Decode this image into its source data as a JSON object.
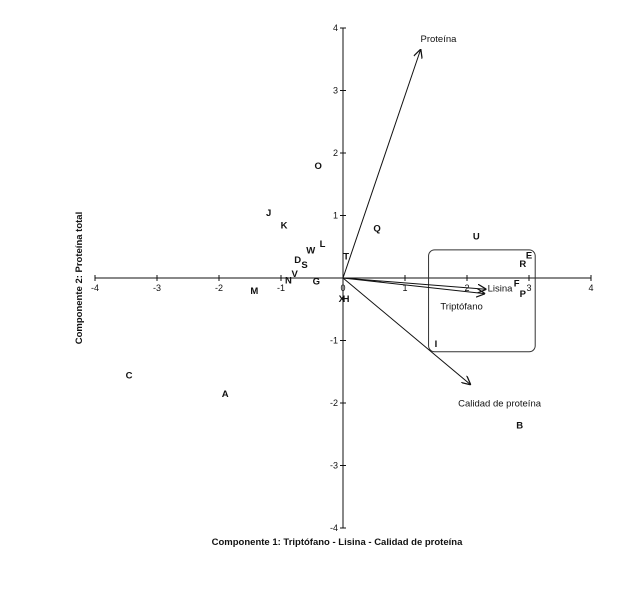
{
  "chart_data": {
    "type": "scatter",
    "xlabel": "Componente 1: Triptófano - Lisina - Calidad de proteína",
    "ylabel": "Componente 2: Proteína total",
    "xlim": [
      -4,
      4
    ],
    "ylim": [
      -4,
      4
    ],
    "x_ticks": [
      "-4",
      "-3",
      "-2",
      "-1",
      "0",
      "1",
      "2",
      "3",
      "4"
    ],
    "y_ticks": [
      "4",
      "3",
      "2",
      "1",
      "0",
      "-1",
      "-2",
      "-3",
      "-4"
    ],
    "points": [
      {
        "label": "O",
        "x": -0.4,
        "y": 1.8
      },
      {
        "label": "J",
        "x": -1.2,
        "y": 1.05
      },
      {
        "label": "K",
        "x": -0.95,
        "y": 0.85
      },
      {
        "label": "L",
        "x": -0.33,
        "y": 0.55
      },
      {
        "label": "W",
        "x": -0.52,
        "y": 0.45
      },
      {
        "label": "D",
        "x": -0.73,
        "y": 0.3
      },
      {
        "label": "S",
        "x": -0.62,
        "y": 0.22
      },
      {
        "label": "T",
        "x": 0.05,
        "y": 0.35
      },
      {
        "label": "V",
        "x": -0.78,
        "y": 0.07
      },
      {
        "label": "N",
        "x": -0.88,
        "y": -0.03
      },
      {
        "label": "G",
        "x": -0.43,
        "y": -0.05
      },
      {
        "label": "M",
        "x": -1.43,
        "y": -0.2
      },
      {
        "label": "X",
        "x": -0.02,
        "y": -0.33
      },
      {
        "label": "H",
        "x": 0.05,
        "y": -0.33
      },
      {
        "label": "Q",
        "x": 0.55,
        "y": 0.8
      },
      {
        "label": "U",
        "x": 2.15,
        "y": 0.67
      },
      {
        "label": "E",
        "x": 3.0,
        "y": 0.37
      },
      {
        "label": "R",
        "x": 2.9,
        "y": 0.23
      },
      {
        "label": "F",
        "x": 2.8,
        "y": -0.08
      },
      {
        "label": "P",
        "x": 2.9,
        "y": -0.25
      },
      {
        "label": "I",
        "x": 1.5,
        "y": -1.05
      },
      {
        "label": "C",
        "x": -3.45,
        "y": -1.55
      },
      {
        "label": "A",
        "x": -1.9,
        "y": -1.85
      },
      {
        "label": "B",
        "x": 2.85,
        "y": -2.35
      }
    ],
    "vectors": [
      {
        "label": "Proteína",
        "x": 1.25,
        "y": 3.65
      },
      {
        "label": "Lisina",
        "x": 2.3,
        "y": -0.18
      },
      {
        "label": "Triptófano",
        "x": 2.28,
        "y": -0.25
      },
      {
        "label": "Calidad de proteína",
        "x": 2.05,
        "y": -1.7
      }
    ],
    "box": {
      "x0": 1.38,
      "x1": 3.1,
      "y0": 0.45,
      "y1": -1.18
    },
    "grid": false,
    "legend": "none"
  }
}
